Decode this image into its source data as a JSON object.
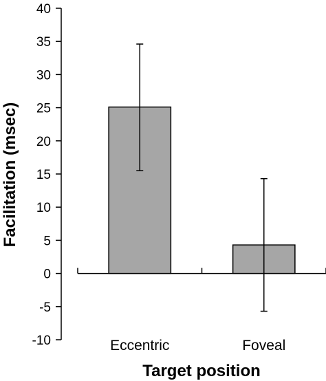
{
  "chart_data": {
    "type": "bar",
    "title": "",
    "xlabel": "Target position",
    "ylabel": "Facilitation (msec)",
    "categories": [
      "Eccentric",
      "Foveal"
    ],
    "values": [
      25.1,
      4.3
    ],
    "error_upper": [
      34.6,
      14.3
    ],
    "error_lower": [
      15.5,
      -5.7
    ],
    "ylim": [
      -10,
      40
    ],
    "yticks": [
      "-10",
      "-5",
      "0",
      "5",
      "10",
      "15",
      "20",
      "25",
      "30",
      "35",
      "40"
    ],
    "grid": false,
    "bar_color": "#a6a6a6",
    "edge_color": "#000000"
  }
}
